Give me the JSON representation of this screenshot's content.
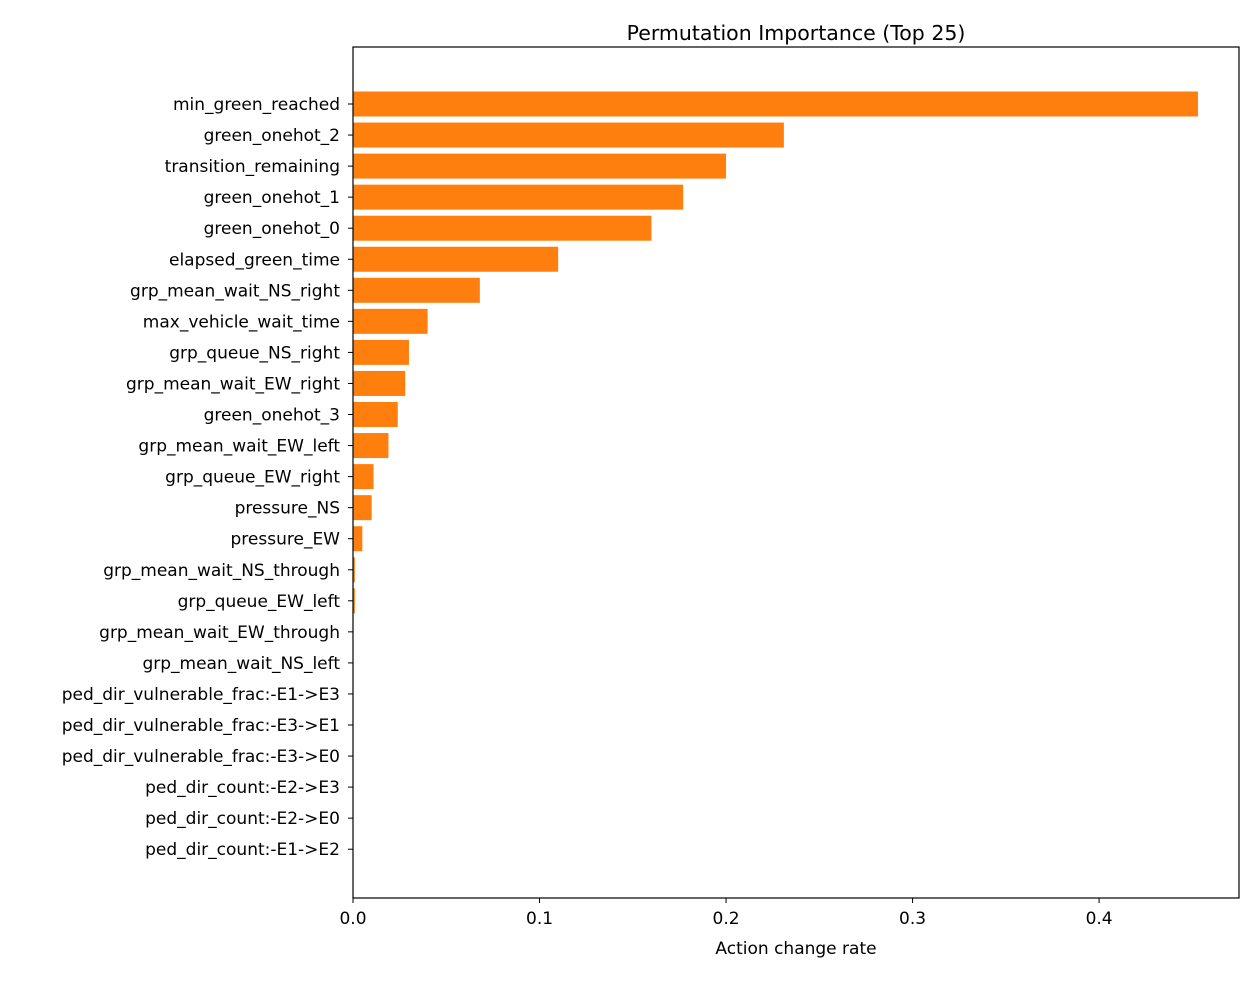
{
  "chart_data": {
    "type": "bar",
    "orientation": "horizontal",
    "title": "Permutation Importance (Top 25)",
    "xlabel": "Action change rate",
    "ylabel": "",
    "xlim": [
      0,
      0.475
    ],
    "xticks": [
      0.0,
      0.1,
      0.2,
      0.3,
      0.4
    ],
    "xtick_labels": [
      "0.0",
      "0.1",
      "0.2",
      "0.3",
      "0.4"
    ],
    "grid": false,
    "bar_color": "#ff7f0e",
    "categories": [
      "min_green_reached",
      "green_onehot_2",
      "transition_remaining",
      "green_onehot_1",
      "green_onehot_0",
      "elapsed_green_time",
      "grp_mean_wait_NS_right",
      "max_vehicle_wait_time",
      "grp_queue_NS_right",
      "grp_mean_wait_EW_right",
      "green_onehot_3",
      "grp_mean_wait_EW_left",
      "grp_queue_EW_right",
      "pressure_NS",
      "pressure_EW",
      "grp_mean_wait_NS_through",
      "grp_queue_EW_left",
      "grp_mean_wait_EW_through",
      "grp_mean_wait_NS_left",
      "ped_dir_vulnerable_frac:-E1->E3",
      "ped_dir_vulnerable_frac:-E3->E1",
      "ped_dir_vulnerable_frac:-E3->E0",
      "ped_dir_count:-E2->E3",
      "ped_dir_count:-E2->E0",
      "ped_dir_count:-E1->E2"
    ],
    "values": [
      0.453,
      0.231,
      0.2,
      0.177,
      0.16,
      0.11,
      0.068,
      0.04,
      0.03,
      0.028,
      0.024,
      0.019,
      0.011,
      0.01,
      0.005,
      0.001,
      0.001,
      0.0,
      0.0,
      0.0,
      0.0,
      0.0,
      0.0,
      0.0,
      0.0
    ]
  }
}
